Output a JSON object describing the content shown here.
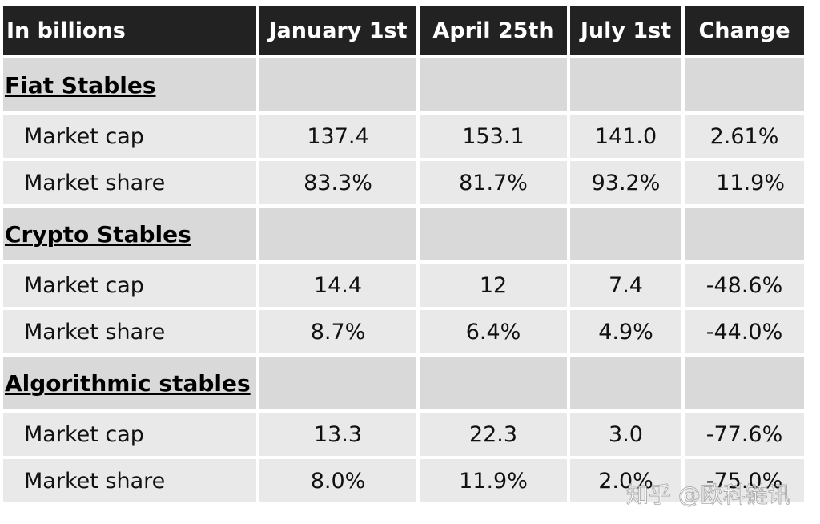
{
  "chart_data": {
    "type": "table",
    "headers": [
      "In billions",
      "January 1st",
      "April 25th",
      "July 1st",
      "Change"
    ],
    "sections": [
      {
        "name": "Fiat Stables",
        "rows": [
          {
            "label": "Market cap",
            "values": [
              "137.4",
              "153.1",
              "141.0",
              "2.61%"
            ]
          },
          {
            "label": "Market share",
            "values": [
              "83.3%",
              "81.7%",
              "93.2%",
              "11.9%"
            ]
          }
        ]
      },
      {
        "name": "Crypto Stables",
        "rows": [
          {
            "label": "Market cap",
            "values": [
              "14.4",
              "12",
              "7.4",
              "-48.6%"
            ]
          },
          {
            "label": "Market share",
            "values": [
              "8.7%",
              "6.4%",
              "4.9%",
              "-44.0%"
            ]
          }
        ]
      },
      {
        "name": "Algorithmic stables",
        "rows": [
          {
            "label": "Market cap",
            "values": [
              "13.3",
              "22.3",
              "3.0",
              "-77.6%"
            ]
          },
          {
            "label": "Market share",
            "values": [
              "8.0%",
              "11.9%",
              "2.0%",
              "-75.0%"
            ]
          }
        ]
      }
    ]
  },
  "watermark": "知乎 @欧科链讯"
}
